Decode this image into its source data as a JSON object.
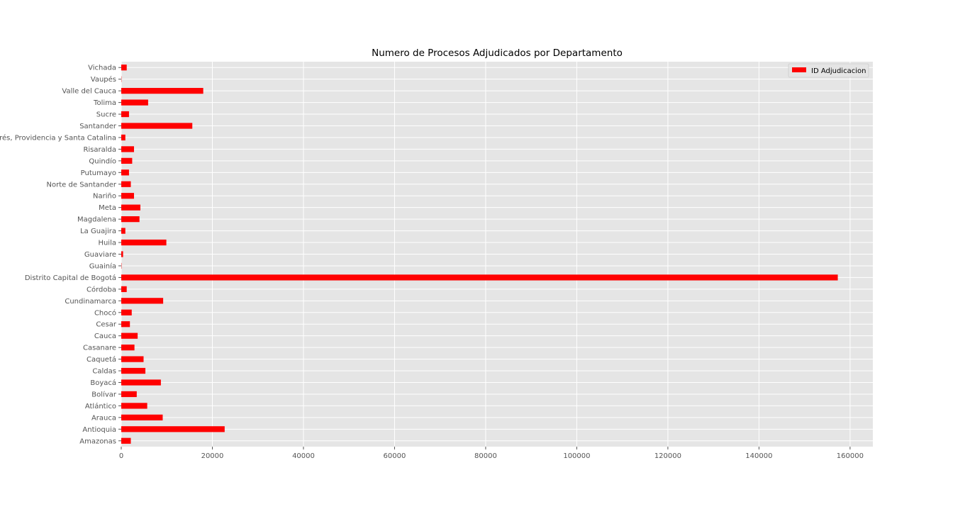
{
  "chart_data": {
    "type": "bar",
    "orientation": "horizontal",
    "title": "Numero de Procesos Adjudicados por Departamento",
    "xlabel": "",
    "ylabel": "",
    "xlim": [
      0,
      165000
    ],
    "xticks": [
      0,
      20000,
      40000,
      60000,
      80000,
      100000,
      120000,
      140000,
      160000
    ],
    "grid": true,
    "legend_position": "top-right",
    "categories": [
      "Amazonas",
      "Antioquia",
      "Arauca",
      "Atlántico",
      "Bolívar",
      "Boyacá",
      "Caldas",
      "Caquetá",
      "Casanare",
      "Cauca",
      "Cesar",
      "Chocó",
      "Cundinamarca",
      "Córdoba",
      "Distrito Capital de Bogotá",
      "Guainía",
      "Guaviare",
      "Huila",
      "La Guajira",
      "Magdalena",
      "Meta",
      "Nariño",
      "Norte de Santander",
      "Putumayo",
      "Quindío",
      "Risaralda",
      "San Andrés, Providencia y Santa Catalina",
      "Santander",
      "Sucre",
      "Tolima",
      "Valle del Cauca",
      "Vaupés",
      "Vichada"
    ],
    "series": [
      {
        "name": "ID Adjudicacion",
        "color": "#ff0000",
        "values": [
          2100,
          22700,
          9100,
          5700,
          3400,
          8700,
          5300,
          4900,
          2900,
          3600,
          1900,
          2300,
          9200,
          1200,
          157300,
          60,
          400,
          9900,
          900,
          4000,
          4200,
          2800,
          2100,
          1700,
          2400,
          2800,
          900,
          15600,
          1700,
          5900,
          18000,
          50,
          1200
        ]
      }
    ]
  }
}
